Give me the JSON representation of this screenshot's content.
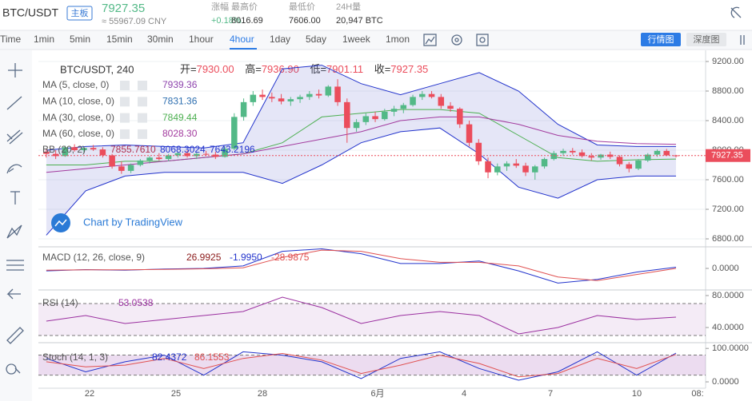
{
  "header": {
    "symbol": "BTC/USDT",
    "board": "主板",
    "price": "7927.35",
    "price_cny": "≈ 55967.09 CNY",
    "stats": [
      {
        "label": "涨幅",
        "value": "+0.18%"
      },
      {
        "label": "最高价",
        "value": "8016.69"
      },
      {
        "label": "最低价",
        "value": "7606.00"
      },
      {
        "label": "24H量",
        "value": "20,947 BTC"
      }
    ]
  },
  "toolbar": {
    "intervals": [
      "Time",
      "1min",
      "5min",
      "15min",
      "30min",
      "1hour",
      "4hour",
      "1day",
      "5day",
      "1week",
      "1mon"
    ],
    "active_interval": "4hour",
    "views": [
      "行情图",
      "深度图"
    ],
    "active_view": "行情图"
  },
  "chart": {
    "legend": {
      "title": "BTC/USDT, 240",
      "ohlc": [
        {
          "label": "开=",
          "value": "7930.00"
        },
        {
          "label": "高=",
          "value": "7936.90"
        },
        {
          "label": "低=",
          "value": "7901.11"
        },
        {
          "label": "收=",
          "value": "7927.35"
        }
      ]
    },
    "mas": [
      {
        "name": "MA (5, close, 0)",
        "value": "7939.36",
        "color": "#8e44ad"
      },
      {
        "name": "MA (10, close, 0)",
        "value": "7831.36",
        "color": "#2e6fb0"
      },
      {
        "name": "MA (30, close, 0)",
        "value": "7849.44",
        "color": "#4caf50",
        "values": [
          7800,
          7800,
          7850,
          7850,
          7900,
          7950,
          8100,
          8450,
          8500,
          8550,
          8550,
          8500,
          8200,
          7900,
          7850,
          7870,
          7880
        ]
      },
      {
        "name": "MA (60, close, 0)",
        "value": "8028.30",
        "color": "#a23a9e",
        "values": [
          7700,
          7750,
          7800,
          7850,
          7900,
          7950,
          8050,
          8150,
          8250,
          8400,
          8450,
          8450,
          8350,
          8200,
          8120,
          8090,
          8080
        ]
      }
    ],
    "bb": {
      "name": "BB (20, 2)",
      "readouts": [
        "7855.7610",
        "8068.3024",
        "7643.2196"
      ],
      "color": "#2233cc",
      "upper": [
        8000,
        8050,
        8070,
        8050,
        8030,
        8100,
        9100,
        9150,
        8900,
        8750,
        8900,
        9050,
        8800,
        8350,
        8070,
        8050,
        8050
      ],
      "lower": [
        6850,
        7450,
        7650,
        7700,
        7700,
        7700,
        7550,
        7800,
        8100,
        8250,
        8300,
        7950,
        7500,
        7350,
        7600,
        7650,
        7650
      ]
    },
    "up_color": "#53b987",
    "down_color": "#eb4d5c",
    "candles": [
      [
        7980,
        8020,
        7900,
        7950
      ],
      [
        7950,
        8000,
        7880,
        7920
      ],
      [
        7920,
        8060,
        7910,
        8040
      ],
      [
        8040,
        8080,
        7980,
        8000
      ],
      [
        8000,
        8050,
        7960,
        8030
      ],
      [
        8030,
        8070,
        7990,
        8010
      ],
      [
        8010,
        8040,
        7900,
        7930
      ],
      [
        7930,
        7950,
        7750,
        7780
      ],
      [
        7780,
        7850,
        7680,
        7720
      ],
      [
        7720,
        7820,
        7690,
        7800
      ],
      [
        7800,
        7880,
        7780,
        7860
      ],
      [
        7860,
        7920,
        7820,
        7900
      ],
      [
        7900,
        7960,
        7860,
        7880
      ],
      [
        7880,
        7950,
        7850,
        7930
      ],
      [
        7930,
        7980,
        7900,
        7960
      ],
      [
        7960,
        8000,
        7900,
        7920
      ],
      [
        7920,
        7970,
        7880,
        7950
      ],
      [
        7950,
        7990,
        7920,
        7940
      ],
      [
        7940,
        7980,
        7880,
        7910
      ],
      [
        7910,
        8050,
        7900,
        8020
      ],
      [
        8020,
        8500,
        8000,
        8450
      ],
      [
        8450,
        8700,
        8400,
        8650
      ],
      [
        8650,
        8800,
        8600,
        8750
      ],
      [
        8750,
        8820,
        8680,
        8720
      ],
      [
        8720,
        8780,
        8650,
        8700
      ],
      [
        8700,
        8760,
        8620,
        8660
      ],
      [
        8660,
        8720,
        8600,
        8690
      ],
      [
        8690,
        8750,
        8640,
        8720
      ],
      [
        8720,
        8800,
        8680,
        8760
      ],
      [
        8760,
        8820,
        8700,
        8740
      ],
      [
        8740,
        8880,
        8720,
        8860
      ],
      [
        8860,
        8960,
        8600,
        8650
      ],
      [
        8650,
        8700,
        8100,
        8300
      ],
      [
        8300,
        8420,
        8250,
        8380
      ],
      [
        8380,
        8500,
        8340,
        8460
      ],
      [
        8460,
        8520,
        8380,
        8420
      ],
      [
        8420,
        8560,
        8400,
        8520
      ],
      [
        8520,
        8600,
        8460,
        8560
      ],
      [
        8560,
        8640,
        8500,
        8610
      ],
      [
        8610,
        8750,
        8590,
        8720
      ],
      [
        8720,
        8800,
        8680,
        8760
      ],
      [
        8760,
        8800,
        8700,
        8720
      ],
      [
        8720,
        8760,
        8560,
        8600
      ],
      [
        8600,
        8650,
        8520,
        8560
      ],
      [
        8560,
        8580,
        8300,
        8350
      ],
      [
        8350,
        8400,
        8050,
        8100
      ],
      [
        8100,
        8150,
        7800,
        7850
      ],
      [
        7850,
        7900,
        7620,
        7700
      ],
      [
        7700,
        7820,
        7660,
        7780
      ],
      [
        7780,
        7850,
        7720,
        7820
      ],
      [
        7820,
        7880,
        7760,
        7790
      ],
      [
        7790,
        7830,
        7650,
        7700
      ],
      [
        7700,
        7800,
        7600,
        7780
      ],
      [
        7780,
        7900,
        7750,
        7880
      ],
      [
        7880,
        7990,
        7860,
        7960
      ],
      [
        7960,
        8020,
        7920,
        7990
      ],
      [
        7990,
        8030,
        7940,
        7970
      ],
      [
        7970,
        8010,
        7900,
        7920
      ],
      [
        7920,
        7960,
        7860,
        7900
      ],
      [
        7900,
        7950,
        7870,
        7940
      ],
      [
        7940,
        7980,
        7880,
        7910
      ],
      [
        7910,
        7930,
        7780,
        7810
      ],
      [
        7810,
        7840,
        7700,
        7750
      ],
      [
        7750,
        7880,
        7730,
        7860
      ],
      [
        7860,
        7960,
        7840,
        7940
      ],
      [
        7940,
        8010,
        7910,
        7990
      ],
      [
        7990,
        8016,
        7920,
        7930
      ],
      [
        7930,
        7936.9,
        7901.11,
        7927.35
      ]
    ],
    "ylim": [
      6703,
      9297
    ],
    "yticks": [
      {
        "value": 9200,
        "label": "9200.00"
      },
      {
        "value": 8800,
        "label": "8800.00"
      },
      {
        "value": 8400,
        "label": "8400.00"
      },
      {
        "value": 8000,
        "label": "8000.00"
      },
      {
        "value": 7600,
        "label": "7600.00"
      },
      {
        "value": 7200,
        "label": "7200.00"
      },
      {
        "value": 6800,
        "label": "6800.00"
      }
    ],
    "watermark": "Chart by TradingView",
    "x_labels": [
      "22",
      "25",
      "28",
      "6月",
      "4",
      "7",
      "10",
      "08:"
    ]
  },
  "macd": {
    "name": "MACD (12, 26, close, 9)",
    "readouts": [
      "26.9925",
      "-1.9950",
      "-28.9875"
    ],
    "macd": [
      -20,
      -10,
      -15,
      -5,
      0,
      20,
      140,
      160,
      120,
      40,
      40,
      60,
      -20,
      -120,
      -90,
      -30,
      10
    ],
    "signal": [
      -15,
      -12,
      -12,
      -8,
      -3,
      5,
      90,
      150,
      140,
      80,
      50,
      50,
      20,
      -70,
      -100,
      -50,
      0
    ],
    "ylim": [
      -170,
      170
    ],
    "yticks": [
      {
        "value": 0,
        "label": "0.0000"
      }
    ]
  },
  "rsi": {
    "name": "RSI (14)",
    "readout": "53.0538",
    "values": [
      48,
      55,
      45,
      50,
      55,
      60,
      78,
      65,
      45,
      55,
      60,
      55,
      32,
      40,
      55,
      50,
      53
    ],
    "ylim": [
      22,
      85
    ],
    "yticks": [
      {
        "value": 80,
        "label": "80.0000"
      },
      {
        "value": 40,
        "label": "40.0000"
      }
    ],
    "bands": [
      70,
      30
    ]
  },
  "stoch": {
    "name": "Stoch (14, 1, 3)",
    "readouts": [
      "82.4372",
      "86.1553"
    ],
    "k": [
      70,
      30,
      60,
      80,
      20,
      90,
      80,
      60,
      10,
      70,
      90,
      40,
      5,
      30,
      90,
      20,
      86
    ],
    "d": [
      60,
      45,
      50,
      70,
      40,
      70,
      85,
      65,
      25,
      50,
      80,
      55,
      15,
      25,
      70,
      40,
      82
    ],
    "ylim": [
      -19,
      110
    ],
    "yticks": [
      {
        "value": 100,
        "label": "100.0000"
      },
      {
        "value": 0,
        "label": "0.0000"
      }
    ],
    "bands": [
      80,
      20
    ]
  }
}
